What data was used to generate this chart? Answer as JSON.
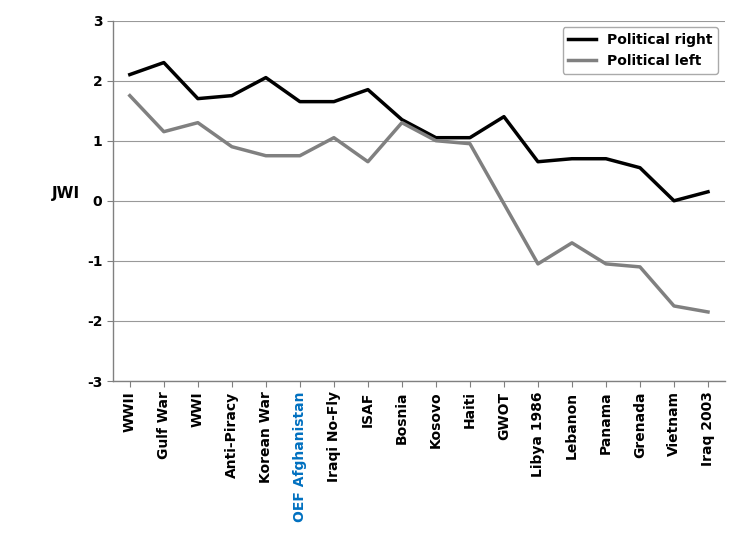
{
  "categories": [
    "WWII",
    "Gulf War",
    "WWI",
    "Anti-Piracy",
    "Korean War",
    "OEF Afghanistan",
    "Iraqi No-Fly",
    "ISAF",
    "Bosnia",
    "Kosovo",
    "Haiti",
    "GWOT",
    "Libya 1986",
    "Lebanon",
    "Panama",
    "Grenada",
    "Vietnam",
    "Iraq 2003"
  ],
  "political_right": [
    2.1,
    2.3,
    1.7,
    1.75,
    2.05,
    1.65,
    1.65,
    1.85,
    1.35,
    1.05,
    1.05,
    1.4,
    0.65,
    0.7,
    0.7,
    0.55,
    0.0,
    0.15
  ],
  "political_left": [
    1.75,
    1.15,
    1.3,
    0.9,
    0.75,
    0.75,
    1.05,
    0.65,
    1.3,
    1.0,
    0.95,
    -0.05,
    -1.05,
    -0.7,
    -1.05,
    -1.1,
    -1.75,
    -1.85
  ],
  "right_color": "#000000",
  "left_color": "#808080",
  "ylabel": "JWI",
  "ylim": [
    -3,
    3
  ],
  "yticks": [
    -3,
    -2,
    -1,
    0,
    1,
    2,
    3
  ],
  "legend_right": "Political right",
  "legend_left": "Political left",
  "line_width": 2.5,
  "figsize": [
    7.4,
    5.37
  ],
  "dpi": 100,
  "oef_color": "#0070C0",
  "grid_color": "#999999",
  "spine_color": "#808080",
  "tick_label_fontsize": 10,
  "ylabel_fontsize": 11
}
